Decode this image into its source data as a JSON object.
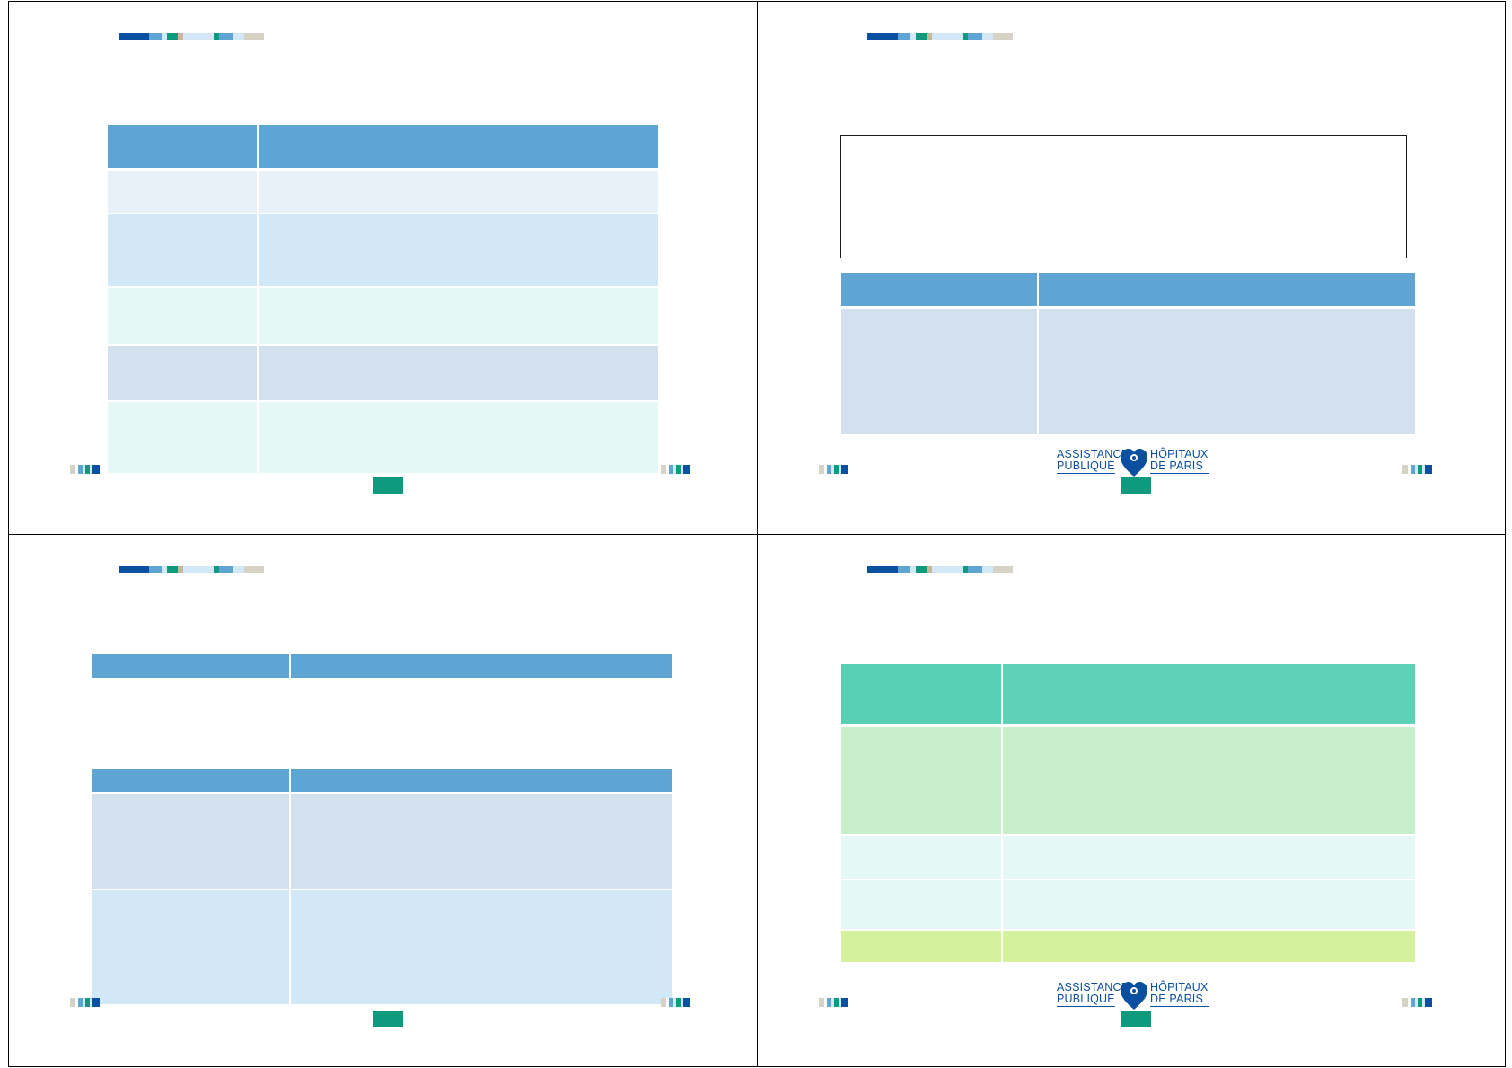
{
  "colors": {
    "header_blue": "#5fa5d3",
    "row_pale_blue": "#e8f0f8",
    "row_light_blue": "#d3e8f6",
    "row_mint": "#e5f8f6",
    "row_grey_blue": "#d3e0ed",
    "header_teal": "#5ed2b7",
    "row_light_green": "#c8efc9",
    "row_lime": "#d4f29c",
    "badge_green": "#0e9a7d",
    "logo_blue": "#0a4fa0"
  },
  "logo": {
    "line1_left": "ASSISTANCE",
    "line2_left": "PUBLIQUE",
    "line1_right": "HÔPITAUX",
    "line2_right": "DE  PARIS",
    "icon": "aphp-heart-logo-icon"
  },
  "slides": [
    {
      "id": "slide-1",
      "table_rows": 6,
      "page_badge": ""
    },
    {
      "id": "slide-2",
      "table_rows": 2,
      "page_badge": ""
    },
    {
      "id": "slide-3",
      "table_rows": 4,
      "page_badge": ""
    },
    {
      "id": "slide-4",
      "table_rows": 5,
      "page_badge": ""
    }
  ]
}
